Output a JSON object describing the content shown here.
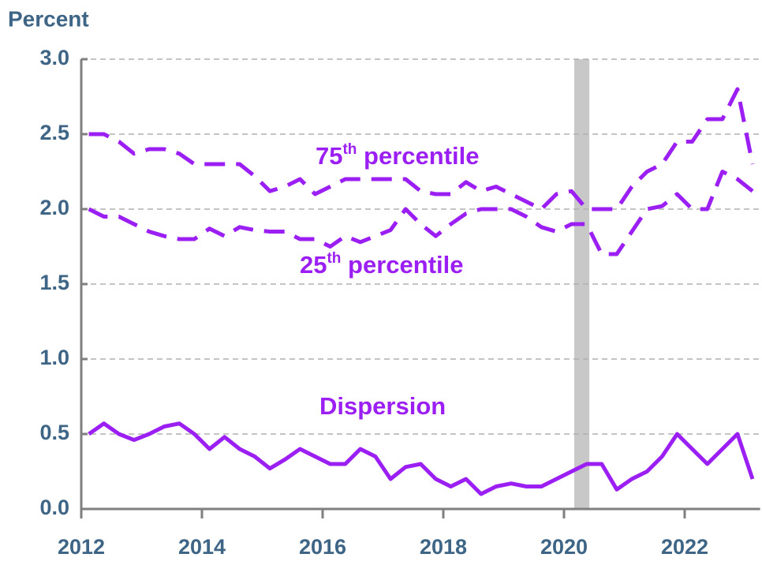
{
  "chart_data": {
    "type": "line",
    "y_axis_label": "Percent",
    "x": [
      2012.125,
      2012.375,
      2012.625,
      2012.875,
      2013.125,
      2013.375,
      2013.625,
      2013.875,
      2014.125,
      2014.375,
      2014.625,
      2014.875,
      2015.125,
      2015.375,
      2015.625,
      2015.875,
      2016.125,
      2016.375,
      2016.625,
      2016.875,
      2017.125,
      2017.375,
      2017.625,
      2017.875,
      2018.125,
      2018.375,
      2018.625,
      2018.875,
      2019.125,
      2019.375,
      2019.625,
      2019.875,
      2020.125,
      2020.375,
      2020.625,
      2020.875,
      2021.125,
      2021.375,
      2021.625,
      2021.875,
      2022.125,
      2022.375,
      2022.625,
      2022.875,
      2023.125
    ],
    "series": [
      {
        "name": "75th percentile",
        "color": "#9b1ff2",
        "dashed": true,
        "values": [
          2.5,
          2.5,
          2.45,
          2.37,
          2.4,
          2.4,
          2.37,
          2.3,
          2.3,
          2.3,
          2.3,
          2.22,
          2.12,
          2.15,
          2.2,
          2.1,
          2.15,
          2.2,
          2.2,
          2.2,
          2.2,
          2.2,
          2.12,
          2.1,
          2.1,
          2.18,
          2.12,
          2.15,
          2.1,
          2.05,
          2.0,
          2.1,
          2.12,
          2.0,
          2.0,
          2.0,
          2.15,
          2.25,
          2.3,
          2.45,
          2.45,
          2.6,
          2.6,
          2.8,
          2.3
        ]
      },
      {
        "name": "25th percentile",
        "color": "#9b1ff2",
        "dashed": true,
        "values": [
          2.0,
          1.95,
          1.95,
          1.9,
          1.85,
          1.82,
          1.8,
          1.8,
          1.87,
          1.82,
          1.88,
          1.86,
          1.85,
          1.85,
          1.8,
          1.8,
          1.75,
          1.82,
          1.78,
          1.82,
          1.86,
          2.0,
          1.9,
          1.82,
          1.9,
          1.97,
          2.0,
          2.0,
          2.0,
          1.95,
          1.88,
          1.85,
          1.9,
          1.9,
          1.7,
          1.7,
          1.85,
          2.0,
          2.02,
          2.1,
          2.0,
          2.0,
          2.25,
          2.2,
          2.12
        ]
      },
      {
        "name": "Dispersion",
        "color": "#9b1ff2",
        "dashed": false,
        "values": [
          0.5,
          0.57,
          0.5,
          0.46,
          0.5,
          0.55,
          0.57,
          0.5,
          0.4,
          0.48,
          0.4,
          0.35,
          0.27,
          0.33,
          0.4,
          0.35,
          0.3,
          0.3,
          0.4,
          0.35,
          0.2,
          0.28,
          0.3,
          0.2,
          0.15,
          0.2,
          0.1,
          0.15,
          0.17,
          0.15,
          0.15,
          0.2,
          0.25,
          0.3,
          0.3,
          0.13,
          0.2,
          0.25,
          0.35,
          0.5,
          0.4,
          0.3,
          0.4,
          0.5,
          0.2
        ]
      }
    ],
    "annotations": [
      {
        "number": "75",
        "sup": "th",
        "text": " percentile"
      },
      {
        "number": "25",
        "sup": "th",
        "text": " percentile"
      },
      {
        "text": "Dispersion"
      }
    ],
    "shaded_region": [
      2020.17,
      2020.42
    ],
    "shaded_color": "#c8c8c8",
    "xlim": [
      2012,
      2023.25
    ],
    "xticks": [
      2012,
      2014,
      2016,
      2018,
      2020,
      2022
    ],
    "ylim": [
      0,
      3
    ],
    "yticks": [
      {
        "value": 0,
        "label": "0.0"
      },
      {
        "value": 0.5,
        "label": "0.5"
      },
      {
        "value": 1,
        "label": "1.0"
      },
      {
        "value": 1.5,
        "label": "1.5"
      },
      {
        "value": 2,
        "label": "2.0"
      },
      {
        "value": 2.5,
        "label": "2.5"
      },
      {
        "value": 3,
        "label": "3.0"
      }
    ],
    "grid": true
  }
}
